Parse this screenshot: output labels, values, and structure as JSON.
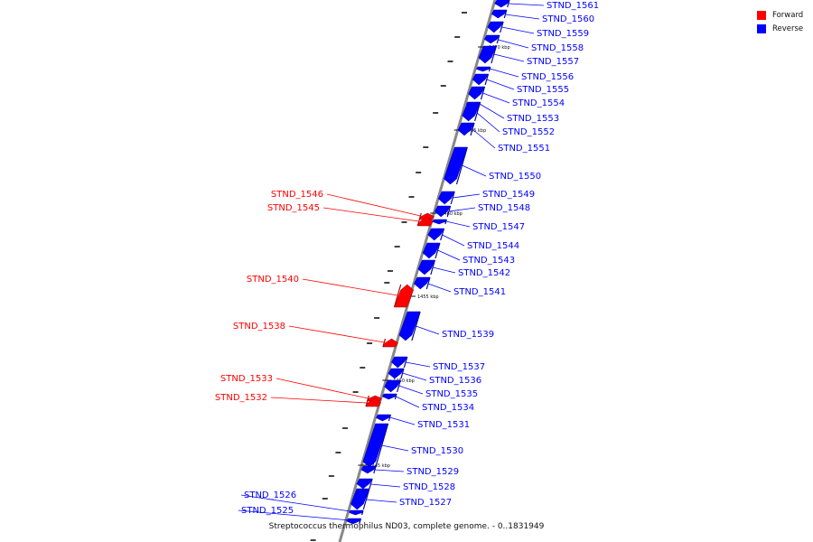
{
  "colors": {
    "forward": "#ff0000",
    "reverse": "#0000ff",
    "backbone": "#888888"
  },
  "legend": {
    "forward": "Forward",
    "reverse": "Reverse"
  },
  "caption": "Streptococcus thermophilus ND03, complete genome. - 0..1831949",
  "genes": [
    {
      "name": "STND_1561",
      "strand": "reverse"
    },
    {
      "name": "STND_1560",
      "strand": "reverse"
    },
    {
      "name": "STND_1559",
      "strand": "reverse"
    },
    {
      "name": "STND_1558",
      "strand": "reverse"
    },
    {
      "name": "STND_1557",
      "strand": "reverse"
    },
    {
      "name": "STND_1556",
      "strand": "reverse"
    },
    {
      "name": "STND_1555",
      "strand": "reverse"
    },
    {
      "name": "STND_1554",
      "strand": "reverse"
    },
    {
      "name": "STND_1553",
      "strand": "reverse"
    },
    {
      "name": "STND_1552",
      "strand": "reverse"
    },
    {
      "name": "STND_1551",
      "strand": "reverse"
    },
    {
      "name": "STND_1550",
      "strand": "reverse"
    },
    {
      "name": "STND_1549",
      "strand": "reverse"
    },
    {
      "name": "STND_1548",
      "strand": "reverse"
    },
    {
      "name": "STND_1547",
      "strand": "reverse"
    },
    {
      "name": "STND_1546",
      "strand": "forward"
    },
    {
      "name": "STND_1545",
      "strand": "forward"
    },
    {
      "name": "STND_1544",
      "strand": "reverse"
    },
    {
      "name": "STND_1543",
      "strand": "reverse"
    },
    {
      "name": "STND_1542",
      "strand": "reverse"
    },
    {
      "name": "STND_1541",
      "strand": "reverse"
    },
    {
      "name": "STND_1540",
      "strand": "forward"
    },
    {
      "name": "STND_1539",
      "strand": "reverse"
    },
    {
      "name": "STND_1538",
      "strand": "forward"
    },
    {
      "name": "STND_1537",
      "strand": "reverse"
    },
    {
      "name": "STND_1536",
      "strand": "reverse"
    },
    {
      "name": "STND_1535",
      "strand": "reverse"
    },
    {
      "name": "STND_1534",
      "strand": "reverse"
    },
    {
      "name": "STND_1533",
      "strand": "forward"
    },
    {
      "name": "STND_1532",
      "strand": "forward"
    },
    {
      "name": "STND_1531",
      "strand": "reverse"
    },
    {
      "name": "STND_1530",
      "strand": "reverse"
    },
    {
      "name": "STND_1529",
      "strand": "reverse"
    },
    {
      "name": "STND_1528",
      "strand": "reverse"
    },
    {
      "name": "STND_1527",
      "strand": "reverse"
    },
    {
      "name": "STND_1526",
      "strand": "reverse"
    },
    {
      "name": "STND_1525",
      "strand": "reverse"
    }
  ],
  "ticks": [
    "1470 kbp",
    "1465 kbp",
    "1460 kbp",
    "1455 kbp",
    "1450 kbp",
    "1445 kbp"
  ]
}
